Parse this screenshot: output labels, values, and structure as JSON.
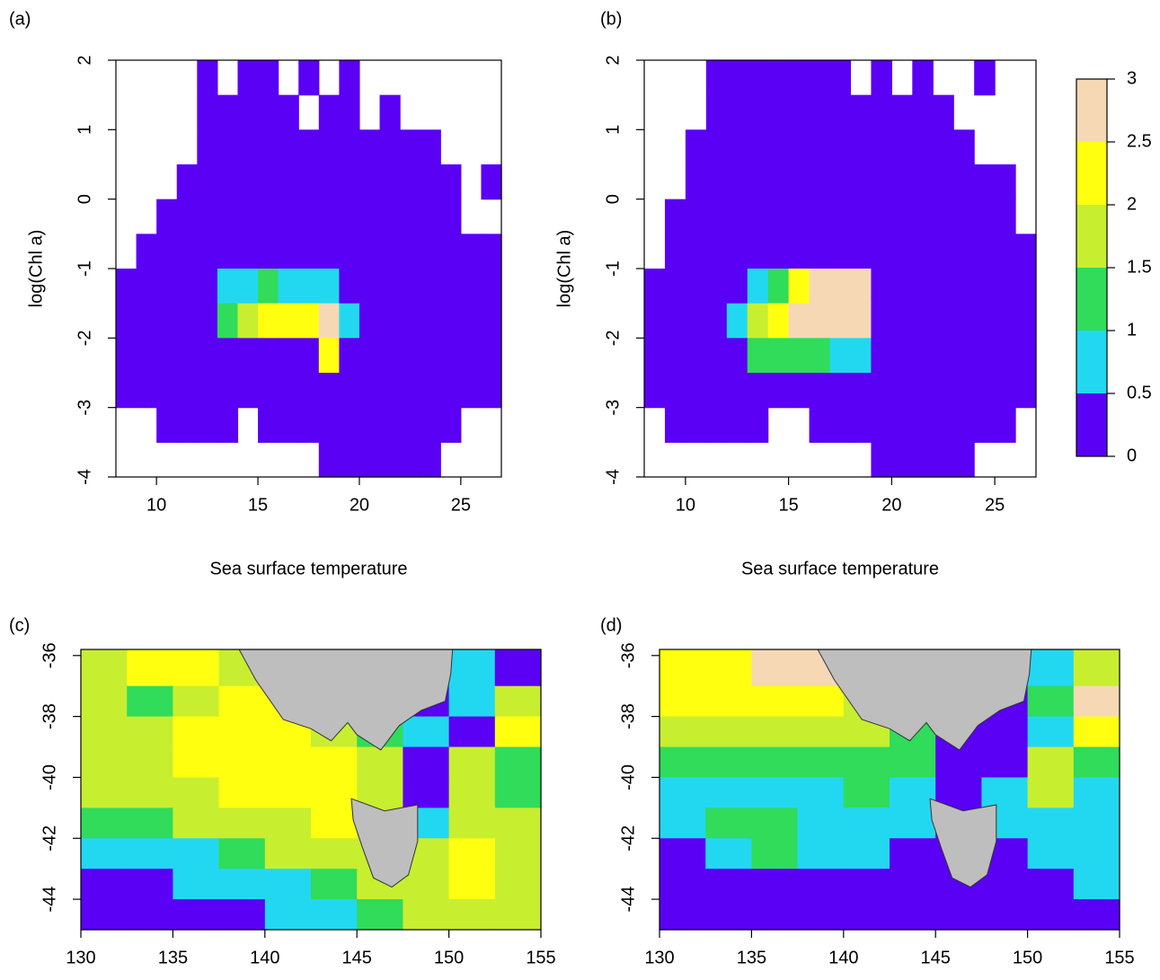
{
  "chart_data": [
    {
      "type": "heatmap",
      "label": "(a)",
      "xlabel": "Sea surface temperature",
      "ylabel": "log(Chl a)",
      "xlim": [
        8,
        27
      ],
      "ylim": [
        -4,
        2
      ],
      "xticks": [
        10,
        15,
        20,
        25
      ],
      "yticks": [
        -4,
        -3,
        -2,
        -1,
        0,
        1,
        2
      ],
      "x_edges": [
        8,
        9,
        10,
        11,
        12,
        13,
        14,
        15,
        16,
        17,
        18,
        19,
        20,
        21,
        22,
        23,
        24,
        25,
        26,
        27
      ],
      "y_edges": [
        2,
        1.5,
        1,
        0.5,
        0,
        -0.5,
        -1,
        -1.5,
        -2,
        -2.5,
        -3,
        -3.5,
        -4
      ],
      "values": [
        [
          null,
          null,
          null,
          null,
          0.25,
          null,
          0.25,
          0.25,
          null,
          0.25,
          null,
          0.25,
          null,
          null,
          null,
          null,
          null,
          null,
          null
        ],
        [
          null,
          null,
          null,
          null,
          0.25,
          0.25,
          0.25,
          0.25,
          0.25,
          null,
          0.25,
          0.25,
          null,
          0.25,
          null,
          null,
          null,
          null,
          null
        ],
        [
          null,
          null,
          null,
          null,
          0.25,
          0.25,
          0.25,
          0.25,
          0.25,
          0.25,
          0.25,
          0.25,
          0.25,
          0.25,
          0.25,
          0.25,
          null,
          null,
          null
        ],
        [
          null,
          null,
          null,
          0.25,
          0.25,
          0.25,
          0.25,
          0.25,
          0.25,
          0.25,
          0.25,
          0.25,
          0.25,
          0.25,
          0.25,
          0.25,
          0.25,
          null,
          0.25
        ],
        [
          null,
          null,
          0.25,
          0.25,
          0.25,
          0.25,
          0.25,
          0.25,
          0.25,
          0.25,
          0.25,
          0.25,
          0.25,
          0.25,
          0.25,
          0.25,
          0.25,
          null,
          null
        ],
        [
          null,
          0.25,
          0.25,
          0.25,
          0.25,
          0.25,
          0.25,
          0.25,
          0.25,
          0.25,
          0.25,
          0.25,
          0.25,
          0.25,
          0.25,
          0.25,
          0.25,
          0.25,
          0.25
        ],
        [
          0.25,
          0.25,
          0.25,
          0.25,
          0.25,
          0.75,
          0.75,
          1.25,
          0.75,
          0.75,
          0.75,
          0.25,
          0.25,
          0.25,
          0.25,
          0.25,
          0.25,
          0.25,
          0.25
        ],
        [
          0.25,
          0.25,
          0.25,
          0.25,
          0.25,
          1.25,
          1.75,
          2.25,
          2.25,
          2.25,
          2.75,
          0.75,
          0.25,
          0.25,
          0.25,
          0.25,
          0.25,
          0.25,
          0.25
        ],
        [
          0.25,
          0.25,
          0.25,
          0.25,
          0.25,
          0.25,
          0.25,
          0.25,
          0.25,
          0.25,
          2.25,
          0.25,
          0.25,
          0.25,
          0.25,
          0.25,
          0.25,
          0.25,
          0.25
        ],
        [
          0.25,
          0.25,
          0.25,
          0.25,
          0.25,
          0.25,
          0.25,
          0.25,
          0.25,
          0.25,
          0.25,
          0.25,
          0.25,
          0.25,
          0.25,
          0.25,
          0.25,
          0.25,
          0.25
        ],
        [
          null,
          null,
          0.25,
          0.25,
          0.25,
          0.25,
          null,
          0.25,
          0.25,
          0.25,
          0.25,
          0.25,
          0.25,
          0.25,
          0.25,
          0.25,
          0.25,
          null,
          null
        ],
        [
          null,
          null,
          null,
          null,
          null,
          null,
          null,
          null,
          null,
          null,
          0.25,
          0.25,
          0.25,
          0.25,
          0.25,
          0.25,
          null,
          null,
          null
        ]
      ]
    },
    {
      "type": "heatmap",
      "label": "(b)",
      "xlabel": "Sea surface temperature",
      "ylabel": "log(Chl a)",
      "xlim": [
        8,
        27
      ],
      "ylim": [
        -4,
        2
      ],
      "xticks": [
        10,
        15,
        20,
        25
      ],
      "yticks": [
        -4,
        -3,
        -2,
        -1,
        0,
        1,
        2
      ],
      "x_edges": [
        8,
        9,
        10,
        11,
        12,
        13,
        14,
        15,
        16,
        17,
        18,
        19,
        20,
        21,
        22,
        23,
        24,
        25,
        26,
        27
      ],
      "y_edges": [
        2,
        1.5,
        1,
        0.5,
        0,
        -0.5,
        -1,
        -1.5,
        -2,
        -2.5,
        -3,
        -3.5,
        -4
      ],
      "values": [
        [
          null,
          null,
          null,
          0.25,
          0.25,
          0.25,
          0.25,
          0.25,
          0.25,
          0.25,
          null,
          0.25,
          null,
          0.25,
          null,
          null,
          0.25,
          null,
          null
        ],
        [
          null,
          null,
          null,
          0.25,
          0.25,
          0.25,
          0.25,
          0.25,
          0.25,
          0.25,
          0.25,
          0.25,
          0.25,
          0.25,
          0.25,
          null,
          null,
          null,
          null
        ],
        [
          null,
          null,
          0.25,
          0.25,
          0.25,
          0.25,
          0.25,
          0.25,
          0.25,
          0.25,
          0.25,
          0.25,
          0.25,
          0.25,
          0.25,
          0.25,
          null,
          null,
          null
        ],
        [
          null,
          null,
          0.25,
          0.25,
          0.25,
          0.25,
          0.25,
          0.25,
          0.25,
          0.25,
          0.25,
          0.25,
          0.25,
          0.25,
          0.25,
          0.25,
          0.25,
          0.25,
          null
        ],
        [
          null,
          0.25,
          0.25,
          0.25,
          0.25,
          0.25,
          0.25,
          0.25,
          0.25,
          0.25,
          0.25,
          0.25,
          0.25,
          0.25,
          0.25,
          0.25,
          0.25,
          0.25,
          null
        ],
        [
          null,
          0.25,
          0.25,
          0.25,
          0.25,
          0.25,
          0.25,
          0.25,
          0.25,
          0.25,
          0.25,
          0.25,
          0.25,
          0.25,
          0.25,
          0.25,
          0.25,
          0.25,
          0.25
        ],
        [
          0.25,
          0.25,
          0.25,
          0.25,
          0.25,
          0.75,
          1.25,
          2.25,
          2.75,
          2.75,
          2.75,
          0.25,
          0.25,
          0.25,
          0.25,
          0.25,
          0.25,
          0.25,
          0.25
        ],
        [
          0.25,
          0.25,
          0.25,
          0.25,
          0.75,
          1.75,
          2.25,
          2.75,
          2.75,
          2.75,
          2.75,
          0.25,
          0.25,
          0.25,
          0.25,
          0.25,
          0.25,
          0.25,
          0.25
        ],
        [
          0.25,
          0.25,
          0.25,
          0.25,
          0.25,
          1.25,
          1.25,
          1.25,
          1.25,
          0.75,
          0.75,
          0.25,
          0.25,
          0.25,
          0.25,
          0.25,
          0.25,
          0.25,
          0.25
        ],
        [
          0.25,
          0.25,
          0.25,
          0.25,
          0.25,
          0.25,
          0.25,
          0.25,
          0.25,
          0.25,
          0.25,
          0.25,
          0.25,
          0.25,
          0.25,
          0.25,
          0.25,
          0.25,
          0.25
        ],
        [
          null,
          0.25,
          0.25,
          0.25,
          0.25,
          0.25,
          null,
          null,
          0.25,
          0.25,
          0.25,
          0.25,
          0.25,
          0.25,
          0.25,
          0.25,
          0.25,
          0.25,
          null
        ],
        [
          null,
          null,
          null,
          null,
          null,
          null,
          null,
          null,
          null,
          null,
          null,
          0.25,
          0.25,
          0.25,
          0.25,
          0.25,
          null,
          null,
          null
        ]
      ],
      "colorbar": {
        "ticks": [
          0,
          0.5,
          1,
          1.5,
          2,
          2.5,
          3
        ],
        "colors": [
          "#5a00f5",
          "#22d8f0",
          "#30dc5a",
          "#c8ee30",
          "#ffff10",
          "#f6d8b4"
        ]
      }
    },
    {
      "type": "map",
      "label": "(c)",
      "xlim": [
        130,
        155
      ],
      "ylim": [
        -45,
        -35.8
      ],
      "xticks": [
        130,
        135,
        140,
        145,
        150,
        155
      ],
      "yticks": [
        -44,
        -42,
        -40,
        -38,
        -36
      ],
      "x_edges": [
        130,
        132.5,
        135,
        137.5,
        140,
        142.5,
        145,
        147.5,
        150,
        152.5,
        155
      ],
      "y_edges": [
        -35.8,
        -37,
        -38,
        -39,
        -40,
        -41,
        -42,
        -43,
        -44,
        -45
      ],
      "values": [
        [
          1.75,
          2.25,
          2.25,
          1.75,
          0.25,
          0.25,
          0.25,
          0.25,
          0.75,
          0.25
        ],
        [
          1.75,
          1.25,
          1.75,
          2.25,
          2.25,
          1.75,
          1.25,
          0.25,
          0.75,
          1.75
        ],
        [
          1.75,
          1.75,
          2.25,
          2.25,
          2.25,
          1.75,
          1.25,
          0.75,
          0.25,
          2.25
        ],
        [
          1.75,
          1.75,
          2.25,
          2.25,
          2.25,
          2.25,
          1.75,
          0.25,
          1.75,
          1.25
        ],
        [
          1.75,
          1.75,
          1.75,
          2.25,
          2.25,
          2.25,
          1.75,
          0.25,
          1.75,
          1.25
        ],
        [
          1.25,
          1.25,
          1.75,
          1.75,
          1.75,
          2.25,
          1.75,
          0.75,
          1.75,
          1.75
        ],
        [
          0.75,
          0.75,
          0.75,
          1.25,
          1.75,
          1.75,
          1.75,
          1.75,
          2.25,
          1.75
        ],
        [
          0.25,
          0.25,
          0.75,
          0.75,
          0.75,
          1.25,
          1.75,
          1.75,
          2.25,
          1.75
        ],
        [
          0.25,
          0.25,
          0.25,
          0.25,
          0.75,
          0.75,
          1.25,
          1.75,
          1.75,
          1.75
        ]
      ]
    },
    {
      "type": "map",
      "label": "(d)",
      "xlim": [
        130,
        155
      ],
      "ylim": [
        -45,
        -35.8
      ],
      "xticks": [
        130,
        135,
        140,
        145,
        150,
        155
      ],
      "yticks": [
        -44,
        -42,
        -40,
        -38,
        -36
      ],
      "x_edges": [
        130,
        132.5,
        135,
        137.5,
        140,
        142.5,
        145,
        147.5,
        150,
        152.5,
        155
      ],
      "y_edges": [
        -35.8,
        -37,
        -38,
        -39,
        -40,
        -41,
        -42,
        -43,
        -44,
        -45
      ],
      "values": [
        [
          2.25,
          2.25,
          2.75,
          2.75,
          0.25,
          0.25,
          0.25,
          0.25,
          0.75,
          1.75
        ],
        [
          2.25,
          2.25,
          2.25,
          2.25,
          1.75,
          0.75,
          0.25,
          0.25,
          1.25,
          2.75
        ],
        [
          1.75,
          1.75,
          1.75,
          1.75,
          1.75,
          1.25,
          0.25,
          0.25,
          0.75,
          2.25
        ],
        [
          1.25,
          1.25,
          1.25,
          1.25,
          1.25,
          1.25,
          0.25,
          0.25,
          1.75,
          1.25
        ],
        [
          0.75,
          0.75,
          0.75,
          0.75,
          1.25,
          0.75,
          0.25,
          0.75,
          1.75,
          0.75
        ],
        [
          0.75,
          1.25,
          1.25,
          0.75,
          0.75,
          0.75,
          0.25,
          0.75,
          0.75,
          0.75
        ],
        [
          0.25,
          0.75,
          1.25,
          0.75,
          0.75,
          0.25,
          0.25,
          0.25,
          0.75,
          0.75
        ],
        [
          0.25,
          0.25,
          0.25,
          0.25,
          0.25,
          0.25,
          0.25,
          0.25,
          0.25,
          0.75
        ],
        [
          0.25,
          0.25,
          0.25,
          0.25,
          0.25,
          0.25,
          0.25,
          0.25,
          0.25,
          0.25
        ]
      ]
    }
  ]
}
